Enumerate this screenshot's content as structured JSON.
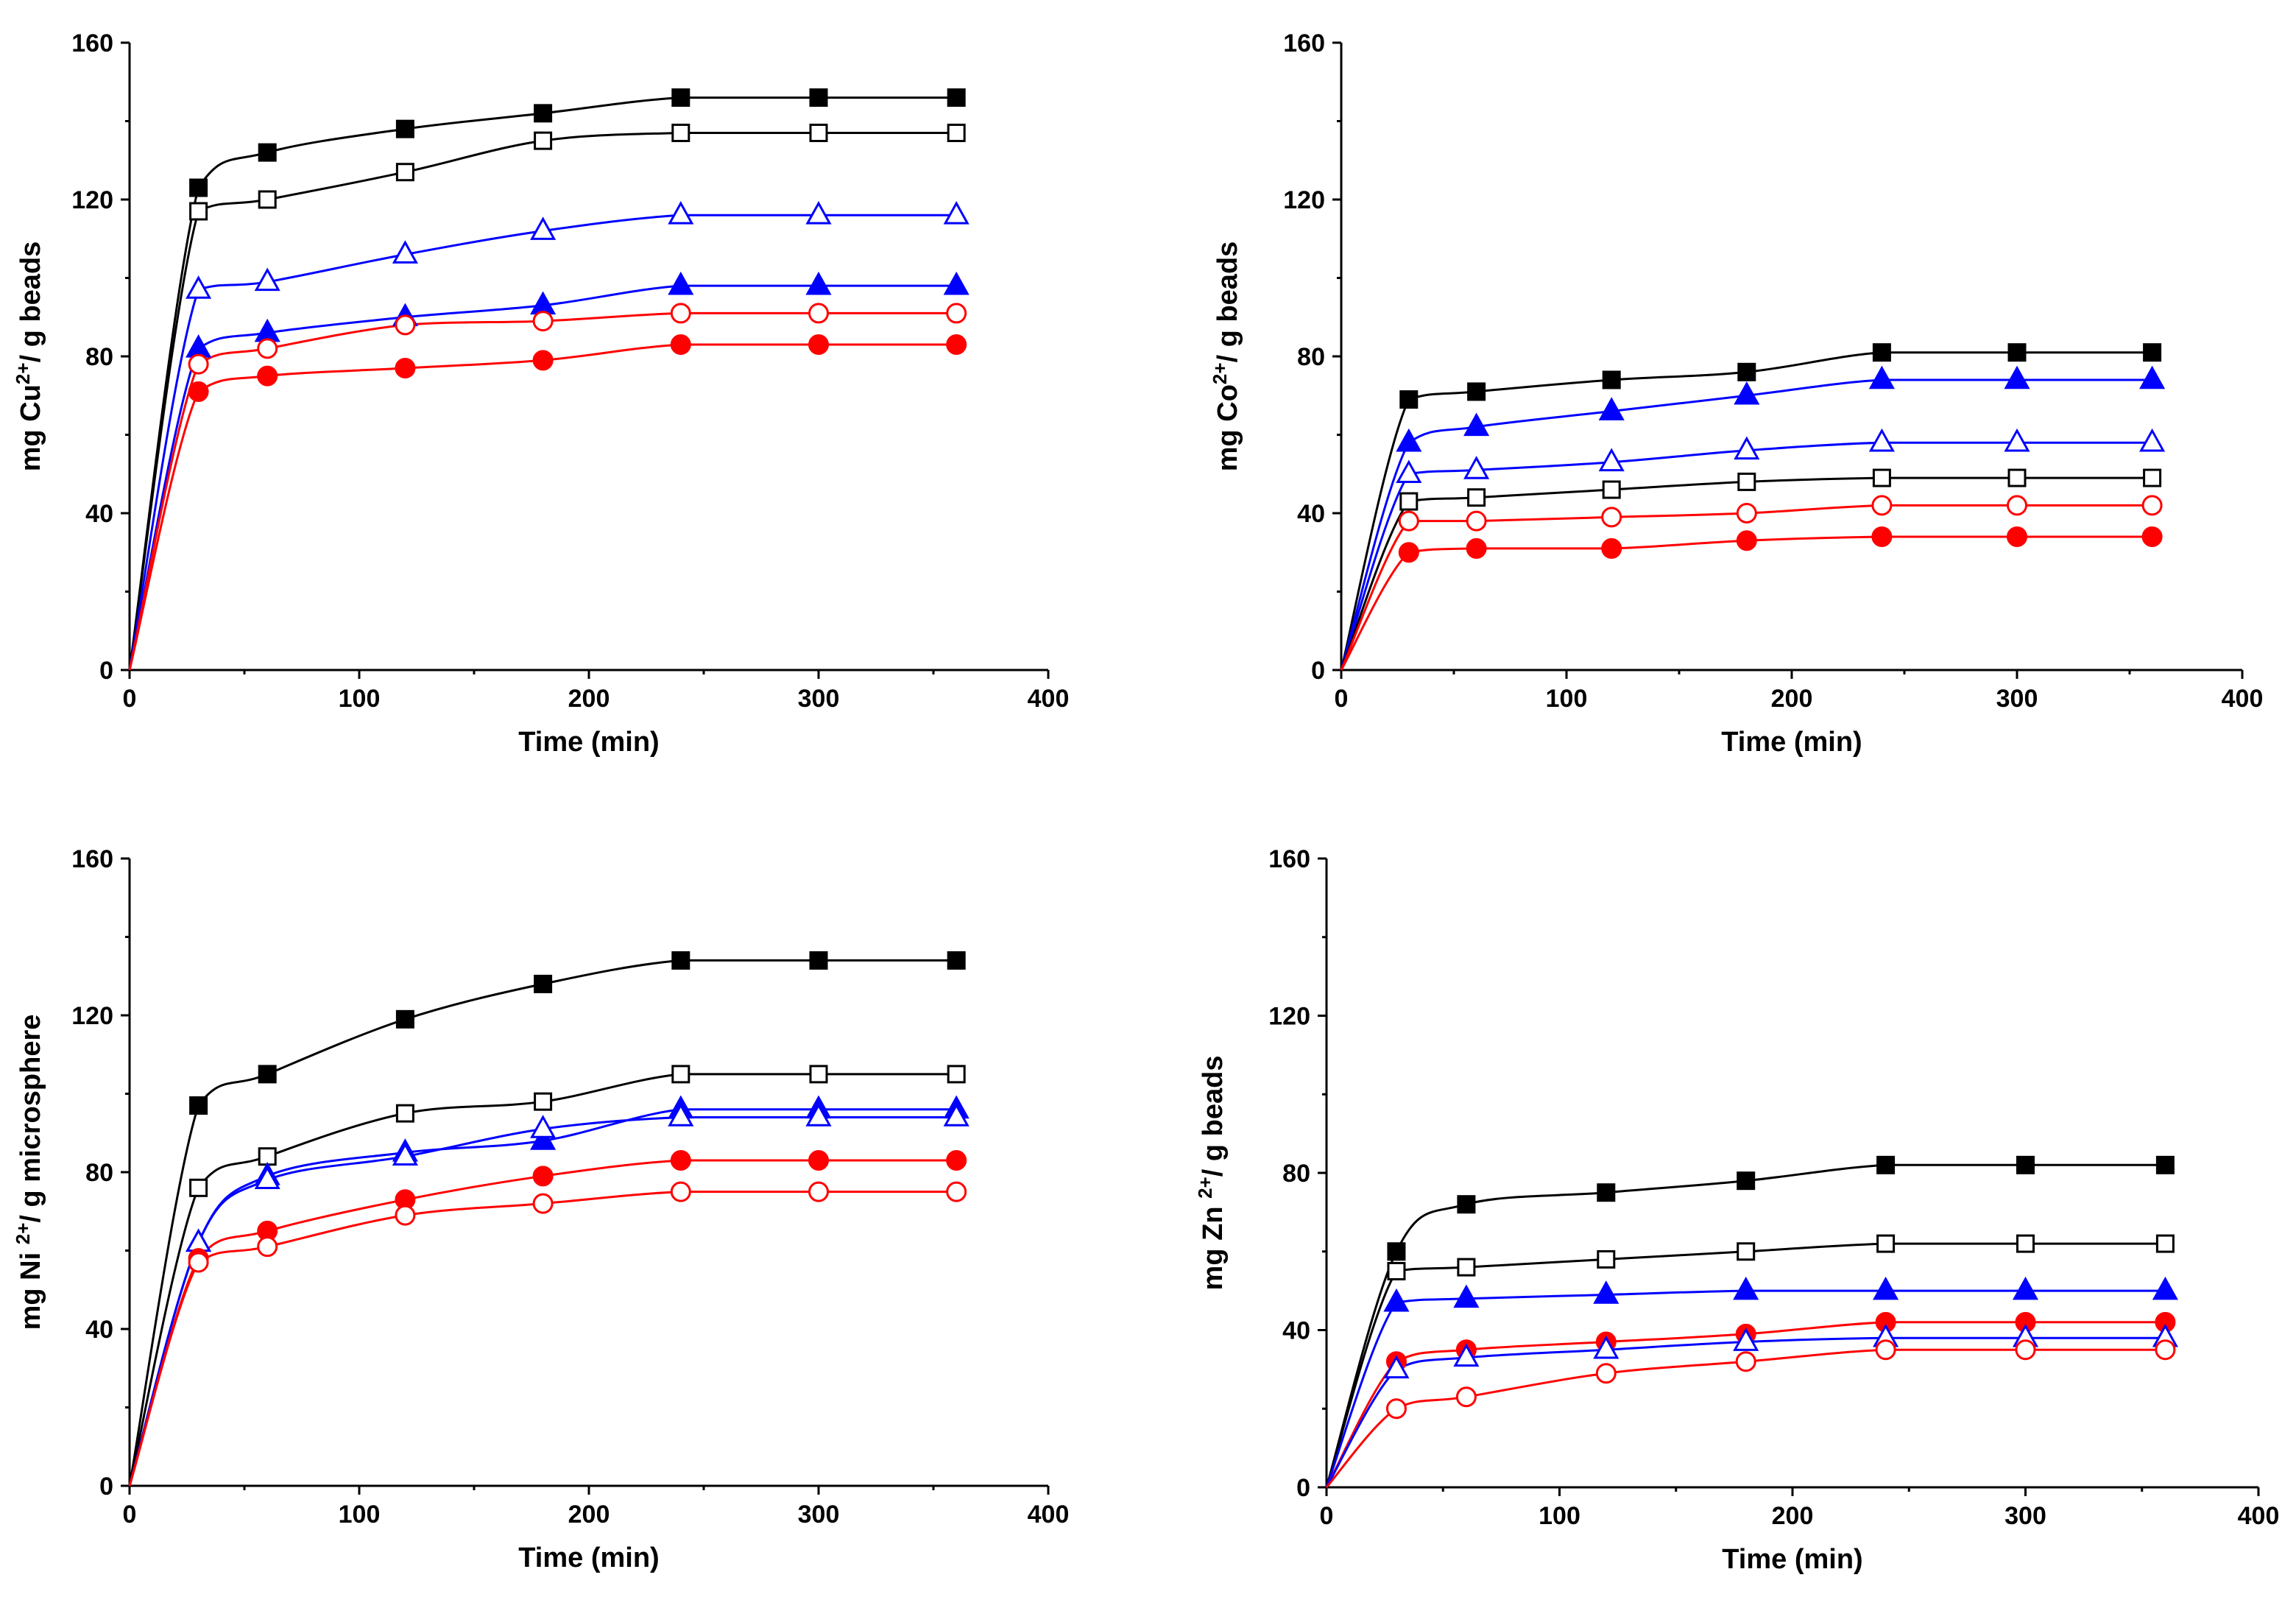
{
  "colors": {
    "black": "#000000",
    "blue": "#0000ff",
    "red": "#ff0000"
  },
  "chart_data": [
    {
      "type": "scatter",
      "ylabel": {
        "base": "mg Cu",
        "sup": "2+",
        "rest": "/ g beads"
      },
      "xlabel": "Time (min)",
      "xlim": [
        0,
        400
      ],
      "ylim": [
        0,
        160
      ],
      "xticks": [
        0,
        100,
        200,
        300,
        400
      ],
      "yticks": [
        0,
        40,
        80,
        120,
        160
      ],
      "x": [
        0,
        30,
        60,
        120,
        180,
        240,
        300,
        360
      ],
      "series": [
        {
          "name": "filled-square-black",
          "marker": "square",
          "filled": true,
          "color": "#000000",
          "values": [
            0,
            123,
            132,
            138,
            142,
            146,
            146,
            146
          ]
        },
        {
          "name": "open-square-black",
          "marker": "square",
          "filled": false,
          "color": "#000000",
          "values": [
            0,
            117,
            120,
            127,
            135,
            137,
            137,
            137
          ]
        },
        {
          "name": "open-triangle-blue",
          "marker": "triangle",
          "filled": false,
          "color": "#0000ff",
          "values": [
            0,
            97,
            99,
            106,
            112,
            116,
            116,
            116
          ]
        },
        {
          "name": "filled-triangle-blue",
          "marker": "triangle",
          "filled": true,
          "color": "#0000ff",
          "values": [
            0,
            82,
            86,
            90,
            93,
            98,
            98,
            98
          ]
        },
        {
          "name": "open-circle-red",
          "marker": "circle",
          "filled": false,
          "color": "#ff0000",
          "values": [
            0,
            78,
            82,
            88,
            89,
            91,
            91,
            91
          ]
        },
        {
          "name": "filled-circle-red",
          "marker": "circle",
          "filled": true,
          "color": "#ff0000",
          "values": [
            0,
            71,
            75,
            77,
            79,
            83,
            83,
            83
          ]
        }
      ]
    },
    {
      "type": "scatter",
      "ylabel": {
        "base": "mg Co",
        "sup": "2+",
        "rest": "/ g beads"
      },
      "xlabel": "Time (min)",
      "xlim": [
        0,
        400
      ],
      "ylim": [
        0,
        160
      ],
      "xticks": [
        0,
        100,
        200,
        300,
        400
      ],
      "yticks": [
        0,
        40,
        80,
        120,
        160
      ],
      "x": [
        0,
        30,
        60,
        120,
        180,
        240,
        300,
        360
      ],
      "series": [
        {
          "name": "filled-square-black",
          "marker": "square",
          "filled": true,
          "color": "#000000",
          "values": [
            0,
            69,
            71,
            74,
            76,
            81,
            81,
            81
          ]
        },
        {
          "name": "filled-triangle-blue",
          "marker": "triangle",
          "filled": true,
          "color": "#0000ff",
          "values": [
            0,
            58,
            62,
            66,
            70,
            74,
            74,
            74
          ]
        },
        {
          "name": "open-triangle-blue",
          "marker": "triangle",
          "filled": false,
          "color": "#0000ff",
          "values": [
            0,
            50,
            51,
            53,
            56,
            58,
            58,
            58
          ]
        },
        {
          "name": "open-square-black",
          "marker": "square",
          "filled": false,
          "color": "#000000",
          "values": [
            0,
            43,
            44,
            46,
            48,
            49,
            49,
            49
          ]
        },
        {
          "name": "open-circle-red",
          "marker": "circle",
          "filled": false,
          "color": "#ff0000",
          "values": [
            0,
            38,
            38,
            39,
            40,
            42,
            42,
            42
          ]
        },
        {
          "name": "filled-circle-red",
          "marker": "circle",
          "filled": true,
          "color": "#ff0000",
          "values": [
            0,
            30,
            31,
            31,
            33,
            34,
            34,
            34
          ]
        }
      ]
    },
    {
      "type": "scatter",
      "ylabel": {
        "base": "mg Ni ",
        "sup": "2+",
        "rest": "/ g microsphere"
      },
      "xlabel": "Time (min)",
      "xlim": [
        0,
        400
      ],
      "ylim": [
        0,
        160
      ],
      "xticks": [
        0,
        100,
        200,
        300,
        400
      ],
      "yticks": [
        0,
        40,
        80,
        120,
        160
      ],
      "x": [
        0,
        30,
        60,
        120,
        180,
        240,
        300,
        360
      ],
      "series": [
        {
          "name": "filled-square-black",
          "marker": "square",
          "filled": true,
          "color": "#000000",
          "values": [
            0,
            97,
            105,
            119,
            128,
            134,
            134,
            134
          ]
        },
        {
          "name": "open-square-black",
          "marker": "square",
          "filled": false,
          "color": "#000000",
          "values": [
            0,
            76,
            84,
            95,
            98,
            105,
            105,
            105
          ]
        },
        {
          "name": "filled-triangle-blue",
          "marker": "triangle",
          "filled": true,
          "color": "#0000ff",
          "values": [
            0,
            62,
            79,
            85,
            88,
            96,
            96,
            96
          ]
        },
        {
          "name": "open-triangle-blue",
          "marker": "triangle",
          "filled": false,
          "color": "#0000ff",
          "values": [
            0,
            62,
            78,
            84,
            91,
            94,
            94,
            94
          ]
        },
        {
          "name": "filled-circle-red",
          "marker": "circle",
          "filled": true,
          "color": "#ff0000",
          "values": [
            0,
            58,
            65,
            73,
            79,
            83,
            83,
            83
          ]
        },
        {
          "name": "open-circle-red",
          "marker": "circle",
          "filled": false,
          "color": "#ff0000",
          "values": [
            0,
            57,
            61,
            69,
            72,
            75,
            75,
            75
          ]
        }
      ]
    },
    {
      "type": "scatter",
      "ylabel": {
        "base": "mg Zn ",
        "sup": "2+",
        "rest": "/ g beads"
      },
      "xlabel": "Time (min)",
      "xlim": [
        0,
        400
      ],
      "ylim": [
        0,
        160
      ],
      "xticks": [
        0,
        100,
        200,
        300,
        400
      ],
      "yticks": [
        0,
        40,
        80,
        120,
        160
      ],
      "x": [
        0,
        30,
        60,
        120,
        180,
        240,
        300,
        360
      ],
      "series": [
        {
          "name": "filled-square-black",
          "marker": "square",
          "filled": true,
          "color": "#000000",
          "values": [
            0,
            60,
            72,
            75,
            78,
            82,
            82,
            82
          ]
        },
        {
          "name": "open-square-black",
          "marker": "square",
          "filled": false,
          "color": "#000000",
          "values": [
            0,
            55,
            56,
            58,
            60,
            62,
            62,
            62
          ]
        },
        {
          "name": "filled-triangle-blue",
          "marker": "triangle",
          "filled": true,
          "color": "#0000ff",
          "values": [
            0,
            47,
            48,
            49,
            50,
            50,
            50,
            50
          ]
        },
        {
          "name": "filled-circle-red",
          "marker": "circle",
          "filled": true,
          "color": "#ff0000",
          "values": [
            0,
            32,
            35,
            37,
            39,
            42,
            42,
            42
          ]
        },
        {
          "name": "open-triangle-blue",
          "marker": "triangle",
          "filled": false,
          "color": "#0000ff",
          "values": [
            0,
            30,
            33,
            35,
            37,
            38,
            38,
            38
          ]
        },
        {
          "name": "open-circle-red",
          "marker": "circle",
          "filled": false,
          "color": "#ff0000",
          "values": [
            0,
            20,
            23,
            29,
            32,
            35,
            35,
            35
          ]
        }
      ]
    }
  ]
}
